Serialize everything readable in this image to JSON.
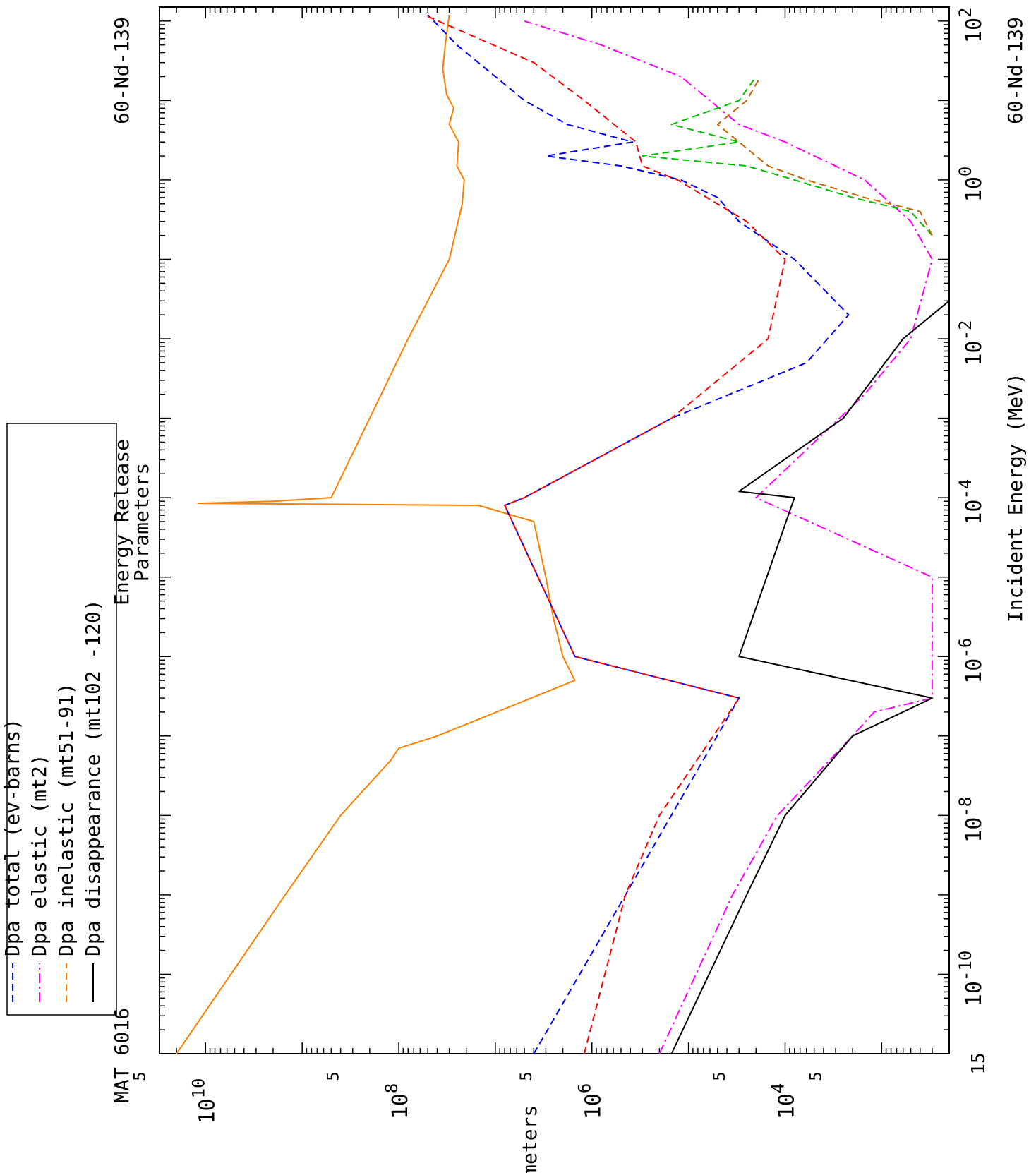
{
  "chart_data": {
    "type": "line",
    "orientation": "rotated-90-clockwise",
    "title_lines": [
      "Energy Release",
      "Parameters"
    ],
    "material_label": "MAT 6016",
    "isotope_label": "60-Nd-139",
    "xlabel": "Incident Energy (MeV)",
    "ylabel": "Parameters",
    "x_scale": "log",
    "y_scale": "log",
    "xlim": [
      1e-11,
      150
    ],
    "ylim": [
      200.0,
      30000000000.0
    ],
    "x_min_label": "15",
    "x_tick_labels": [
      {
        "base": "10",
        "exp": "-10"
      },
      {
        "base": "10",
        "exp": "-8"
      },
      {
        "base": "10",
        "exp": "-6"
      },
      {
        "base": "10",
        "exp": "-4"
      },
      {
        "base": "10",
        "exp": "-2"
      },
      {
        "base": "10",
        "exp": "0"
      },
      {
        "base": "10",
        "exp": "2"
      }
    ],
    "y_tick_labels": [
      {
        "base": "10",
        "exp": "4"
      },
      {
        "base": "10",
        "exp": "6"
      },
      {
        "base": "10",
        "exp": "8"
      },
      {
        "base": "10",
        "exp": "10"
      }
    ],
    "y_minor_label": "5",
    "grid": false,
    "legend_position": "top-left (rotated)",
    "legend": [
      {
        "text": "Dpa total (ev-barns)",
        "color": "#0000ff"
      },
      {
        "text": "Dpa elastic (mt2)",
        "color": "#ff00ff"
      },
      {
        "text": "Dpa inelastic (mt51-91)",
        "color": "#ff8000"
      },
      {
        "text": "Dpa disappearance (mt102 -120)",
        "color": "#000000"
      }
    ],
    "series": [
      {
        "name": "orange (kerma-like)",
        "color": "#ff8000",
        "style": "solid",
        "x": [
          1e-11,
          1e-09,
          1e-08,
          5e-08,
          7e-08,
          1e-07,
          5e-07,
          1e-06,
          3e-06,
          1e-05,
          5e-05,
          8e-05,
          8.5e-05,
          9e-05,
          0.0001,
          0.001,
          0.01,
          0.1,
          0.5,
          1,
          1.5,
          3,
          5,
          8,
          12,
          25,
          50,
          120
        ],
        "y": [
          20000000000.0,
          1500000000.0,
          400000000.0,
          120000000.0,
          100000000.0,
          40000000.0,
          1500000.0,
          2000000.0,
          2500000.0,
          3000000.0,
          4000000.0,
          15000000.0,
          12000000000.0,
          2000000000.0,
          500000000.0,
          200000000.0,
          80000000.0,
          30000000.0,
          22000000.0,
          21000000.0,
          25000000.0,
          24000000.0,
          30000000.0,
          27000000.0,
          32000000.0,
          35000000.0,
          33000000.0,
          30000000.0
        ]
      },
      {
        "name": "blue (total)",
        "color": "#0000ff",
        "style": "dash",
        "x": [
          1e-11,
          3e-07,
          1e-06,
          8e-05,
          0.0001,
          0.001,
          0.005,
          0.02,
          0.1,
          0.3,
          0.6,
          1.0,
          1.5,
          2.0,
          3,
          5,
          10,
          20,
          50,
          120
        ],
        "y": [
          4000000.0,
          30000.0,
          1500000.0,
          8000000.0,
          5000000.0,
          150000.0,
          6000.0,
          2200.0,
          8000.0,
          30000.0,
          50000.0,
          120000.0,
          500000.0,
          3000000.0,
          380000.0,
          1800000.0,
          5000000.0,
          10000000.0,
          25000000.0,
          50000000.0
        ]
      },
      {
        "name": "red (dashed)",
        "color": "#ff0000",
        "style": "dash",
        "x": [
          1e-11,
          1e-09,
          1e-08,
          3e-07,
          1e-06,
          8e-05,
          0.0001,
          0.001,
          0.01,
          0.1,
          0.3,
          1,
          1.5,
          3,
          10,
          30,
          120
        ],
        "y": [
          1200000.0,
          450000.0,
          200000.0,
          30000.0,
          1500000.0,
          8000000.0,
          5000000.0,
          150000.0,
          15000.0,
          10000.0,
          25000.0,
          130000.0,
          300000.0,
          350000.0,
          1200000.0,
          4000000.0,
          55000000.0
        ]
      },
      {
        "name": "magenta (elastic)",
        "color": "#ff00ff",
        "style": "dash-dot",
        "x": [
          1e-11,
          1e-09,
          1e-08,
          1e-07,
          2e-07,
          3e-07,
          1e-05,
          0.0001,
          0.002,
          0.01,
          0.1,
          0.3,
          1,
          3,
          5,
          10,
          20,
          50,
          100
        ],
        "y": [
          200000.0,
          35000.0,
          12000.0,
          2000.0,
          1200.0,
          300.0,
          300.0,
          20000.0,
          1500.0,
          500.0,
          300.0,
          500.0,
          1500.0,
          10000.0,
          30000.0,
          60000.0,
          120000.0,
          800000.0,
          5000000.0
        ]
      },
      {
        "name": "green",
        "color": "#00c000",
        "style": "dash",
        "x": [
          0.2,
          0.4,
          0.6,
          1.0,
          1.5,
          2.0,
          3.0,
          5.0,
          10,
          20
        ],
        "y": [
          300.0,
          500.0,
          2000.0,
          8000.0,
          25000.0,
          300000.0,
          30000.0,
          150000.0,
          30000.0,
          20000.0
        ]
      },
      {
        "name": "brown",
        "color": "#cc6600",
        "style": "dash",
        "x": [
          0.2,
          0.4,
          0.6,
          1.0,
          1.5,
          2.0,
          3.0,
          5.0,
          10,
          20
        ],
        "y": [
          300.0,
          400.0,
          1500.0,
          6000.0,
          15000.0,
          20000.0,
          30000.0,
          50000.0,
          25000.0,
          18000.0
        ]
      },
      {
        "name": "black (disappearance)",
        "color": "#000000",
        "style": "solid",
        "x": [
          1e-11,
          1e-09,
          1e-08,
          1e-07,
          3e-07,
          1e-06,
          0.0001,
          0.00012,
          0.001,
          0.01,
          0.03
        ],
        "y": [
          150000.0,
          25000.0,
          10000.0,
          2000.0,
          300.0,
          30000.0,
          8000.0,
          30000.0,
          2500.0,
          600.0,
          200.0
        ]
      }
    ]
  }
}
